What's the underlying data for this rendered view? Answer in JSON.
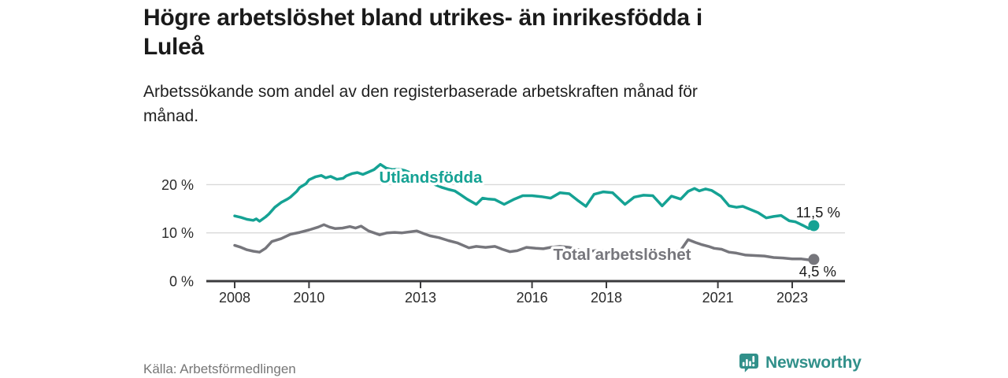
{
  "header": {
    "title_lines": [
      "Högre arbetslöshet bland utrikes- än inrikesfödda i",
      "Luleå"
    ],
    "subtitle_lines": [
      "Arbetssökande som andel av den registerbaserade arbetskraften månad för",
      "månad."
    ]
  },
  "footer": {
    "source": "Källa: Arbetsförmedlingen",
    "brand": "Newsworthy"
  },
  "chart_data": {
    "type": "line",
    "x_unit": "year (monthly series)",
    "y_unit": "percent of registered labour force",
    "ylim": [
      0,
      25
    ],
    "xlim": [
      2008.0,
      2023.7
    ],
    "grid": "horizontal",
    "colors": {
      "grid": "#d9d9d9",
      "axis": "#3b3b3d",
      "accent_teal": "#15a294",
      "accent_gray": "#76767c",
      "brand_teal": "#31908a"
    },
    "y_ticks": [
      {
        "value": 0,
        "label": "0 %"
      },
      {
        "value": 10,
        "label": "10 %"
      },
      {
        "value": 20,
        "label": "20 %"
      }
    ],
    "x_ticks": [
      {
        "year": 2008,
        "label": "2008"
      },
      {
        "year": 2010,
        "label": "2010"
      },
      {
        "year": 2013,
        "label": "2013"
      },
      {
        "year": 2016,
        "label": "2016"
      },
      {
        "year": 2018,
        "label": "2018"
      },
      {
        "year": 2021,
        "label": "2021"
      },
      {
        "year": 2023,
        "label": "2023"
      }
    ],
    "series": [
      {
        "id": "utlandsfodda",
        "name": "Utlandsfödda",
        "color": "#15a294",
        "end_label": "11,5 %",
        "end_value": 11.5,
        "points": [
          [
            2008.0,
            13.5
          ],
          [
            2008.17,
            13.2
          ],
          [
            2008.33,
            12.8
          ],
          [
            2008.5,
            12.6
          ],
          [
            2008.58,
            12.9
          ],
          [
            2008.67,
            12.4
          ],
          [
            2008.83,
            13.3
          ],
          [
            2008.92,
            13.9
          ],
          [
            2009.08,
            15.3
          ],
          [
            2009.25,
            16.3
          ],
          [
            2009.42,
            17.0
          ],
          [
            2009.5,
            17.4
          ],
          [
            2009.67,
            18.6
          ],
          [
            2009.75,
            19.4
          ],
          [
            2009.92,
            20.2
          ],
          [
            2010.0,
            21.0
          ],
          [
            2010.17,
            21.6
          ],
          [
            2010.33,
            21.9
          ],
          [
            2010.45,
            21.4
          ],
          [
            2010.58,
            21.7
          ],
          [
            2010.75,
            21.1
          ],
          [
            2010.92,
            21.3
          ],
          [
            2011.0,
            21.8
          ],
          [
            2011.17,
            22.3
          ],
          [
            2011.3,
            22.5
          ],
          [
            2011.45,
            22.1
          ],
          [
            2011.6,
            22.6
          ],
          [
            2011.75,
            23.1
          ],
          [
            2011.92,
            24.2
          ],
          [
            2012.08,
            23.4
          ],
          [
            2012.25,
            23.1
          ],
          [
            2012.42,
            23.2
          ],
          [
            2012.58,
            22.9
          ],
          [
            2012.75,
            22.4
          ],
          [
            2012.92,
            21.9
          ],
          [
            2013.08,
            21.2
          ],
          [
            2013.25,
            20.5
          ],
          [
            2013.42,
            19.9
          ],
          [
            2013.58,
            19.4
          ],
          [
            2013.75,
            19.0
          ],
          [
            2013.92,
            18.7
          ],
          [
            2014.08,
            17.9
          ],
          [
            2014.25,
            17.0
          ],
          [
            2014.5,
            15.9
          ],
          [
            2014.67,
            17.2
          ],
          [
            2014.83,
            17.0
          ],
          [
            2015.0,
            16.9
          ],
          [
            2015.25,
            15.9
          ],
          [
            2015.5,
            16.9
          ],
          [
            2015.75,
            17.7
          ],
          [
            2016.0,
            17.7
          ],
          [
            2016.25,
            17.5
          ],
          [
            2016.5,
            17.2
          ],
          [
            2016.75,
            18.3
          ],
          [
            2017.0,
            18.1
          ],
          [
            2017.25,
            16.6
          ],
          [
            2017.45,
            15.5
          ],
          [
            2017.67,
            18.0
          ],
          [
            2017.92,
            18.5
          ],
          [
            2018.17,
            18.3
          ],
          [
            2018.5,
            15.9
          ],
          [
            2018.75,
            17.4
          ],
          [
            2019.0,
            17.8
          ],
          [
            2019.25,
            17.7
          ],
          [
            2019.5,
            15.6
          ],
          [
            2019.75,
            17.6
          ],
          [
            2020.0,
            17.0
          ],
          [
            2020.2,
            18.6
          ],
          [
            2020.37,
            19.2
          ],
          [
            2020.5,
            18.7
          ],
          [
            2020.67,
            19.1
          ],
          [
            2020.83,
            18.8
          ],
          [
            2021.08,
            17.6
          ],
          [
            2021.3,
            15.6
          ],
          [
            2021.5,
            15.3
          ],
          [
            2021.67,
            15.5
          ],
          [
            2021.92,
            14.7
          ],
          [
            2022.08,
            14.2
          ],
          [
            2022.3,
            13.1
          ],
          [
            2022.5,
            13.4
          ],
          [
            2022.7,
            13.6
          ],
          [
            2022.92,
            12.5
          ],
          [
            2023.08,
            12.3
          ],
          [
            2023.3,
            11.5
          ],
          [
            2023.45,
            10.9
          ],
          [
            2023.58,
            11.5
          ]
        ]
      },
      {
        "id": "total-arbetsloshet",
        "name": "Total arbetslöshet",
        "color": "#76767c",
        "end_label": "4,5 %",
        "end_value": 4.5,
        "points": [
          [
            2008.0,
            7.4
          ],
          [
            2008.17,
            7.0
          ],
          [
            2008.33,
            6.5
          ],
          [
            2008.5,
            6.2
          ],
          [
            2008.67,
            6.0
          ],
          [
            2008.83,
            6.8
          ],
          [
            2009.0,
            8.2
          ],
          [
            2009.25,
            8.8
          ],
          [
            2009.5,
            9.7
          ],
          [
            2009.75,
            10.1
          ],
          [
            2010.0,
            10.6
          ],
          [
            2010.25,
            11.2
          ],
          [
            2010.4,
            11.7
          ],
          [
            2010.55,
            11.2
          ],
          [
            2010.7,
            10.9
          ],
          [
            2010.9,
            11.0
          ],
          [
            2011.1,
            11.3
          ],
          [
            2011.25,
            11.0
          ],
          [
            2011.4,
            11.4
          ],
          [
            2011.6,
            10.4
          ],
          [
            2011.9,
            9.6
          ],
          [
            2012.1,
            10.0
          ],
          [
            2012.3,
            10.1
          ],
          [
            2012.5,
            10.0
          ],
          [
            2012.7,
            10.2
          ],
          [
            2012.9,
            10.4
          ],
          [
            2013.1,
            9.8
          ],
          [
            2013.25,
            9.4
          ],
          [
            2013.5,
            9.0
          ],
          [
            2013.75,
            8.4
          ],
          [
            2014.0,
            7.9
          ],
          [
            2014.3,
            6.9
          ],
          [
            2014.5,
            7.2
          ],
          [
            2014.75,
            7.0
          ],
          [
            2015.0,
            7.2
          ],
          [
            2015.2,
            6.6
          ],
          [
            2015.4,
            6.1
          ],
          [
            2015.6,
            6.3
          ],
          [
            2015.85,
            7.0
          ],
          [
            2016.1,
            6.8
          ],
          [
            2016.3,
            6.7
          ],
          [
            2016.5,
            7.0
          ],
          [
            2016.75,
            7.2
          ],
          [
            2017.0,
            7.0
          ],
          [
            2017.25,
            6.5
          ],
          [
            2017.5,
            6.1
          ],
          [
            2017.75,
            6.4
          ],
          [
            2018.0,
            6.3
          ],
          [
            2018.25,
            6.0
          ],
          [
            2018.5,
            5.7
          ],
          [
            2018.75,
            6.0
          ],
          [
            2019.0,
            6.1
          ],
          [
            2019.25,
            5.9
          ],
          [
            2019.5,
            5.6
          ],
          [
            2019.75,
            6.0
          ],
          [
            2020.0,
            6.4
          ],
          [
            2020.2,
            8.6
          ],
          [
            2020.4,
            8.0
          ],
          [
            2020.55,
            7.6
          ],
          [
            2020.75,
            7.2
          ],
          [
            2020.9,
            6.8
          ],
          [
            2021.1,
            6.6
          ],
          [
            2021.3,
            6.0
          ],
          [
            2021.5,
            5.8
          ],
          [
            2021.75,
            5.4
          ],
          [
            2022.0,
            5.3
          ],
          [
            2022.25,
            5.2
          ],
          [
            2022.5,
            4.9
          ],
          [
            2022.75,
            4.8
          ],
          [
            2023.0,
            4.6
          ],
          [
            2023.25,
            4.6
          ],
          [
            2023.45,
            4.4
          ],
          [
            2023.58,
            4.5
          ]
        ]
      }
    ]
  }
}
